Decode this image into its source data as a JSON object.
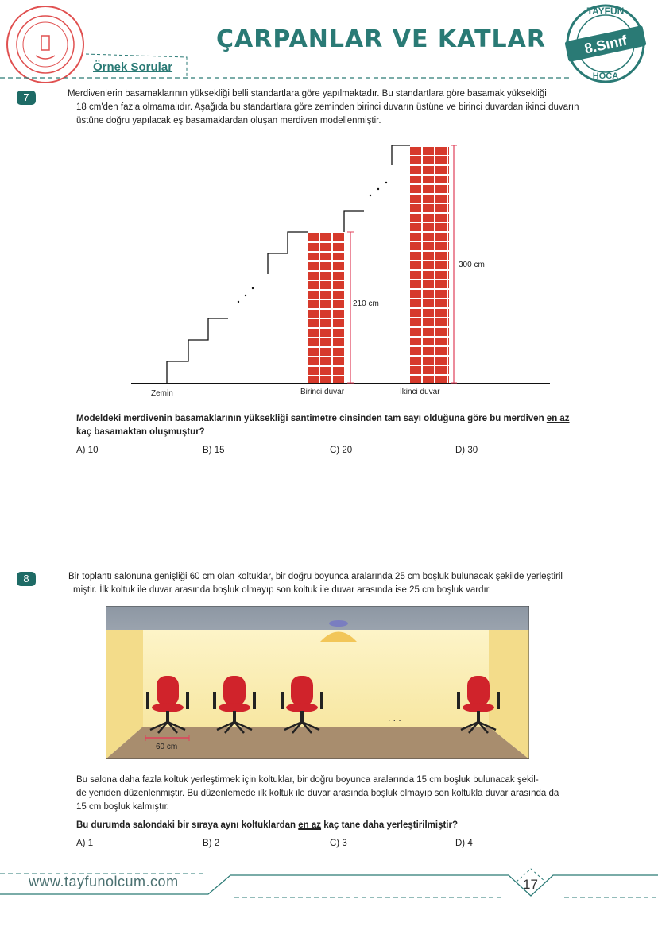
{
  "header": {
    "title": "ÇARPANLAR VE KATLAR",
    "section": "Örnek Sorular",
    "logo_left": "Türkiye Cumhuriyeti Milli Eğitim Bakanlığı",
    "logo_right": {
      "top": "TAYFUN",
      "middle": "8.Sınıf",
      "bottom": "HOCA"
    }
  },
  "q7": {
    "number": "7",
    "text": [
      "Merdivenlerin basamaklarının yüksekliği belli standartlara göre yapılmaktadır. Bu standartlara göre basamak yüksekliği",
      "18 cm'den fazla olmamalıdır. Aşağıda bu standartlara göre zeminden birinci duvarın üstüne ve  birinci duvardan ikinci duvarın",
      "üstüne doğru yapılacak eş basamaklardan oluşan merdiven modellenmiştir."
    ],
    "figure": {
      "ground": "Zemin",
      "wall1": "Birinci duvar",
      "wall2": "İkinci duvar",
      "h1": "210 cm",
      "h2": "300 cm",
      "brick_color": "#d63a2c",
      "measure_color": "#e0405a"
    },
    "question_pre": "Modeldeki merdivenin basamaklarının yüksekliği santimetre cinsinden tam sayı olduğuna göre bu merdiven ",
    "question_em": "en az",
    "question_post": "kaç basamaktan oluşmuştur?",
    "options": [
      "A) 10",
      "B) 15",
      "C) 20",
      "D) 30"
    ]
  },
  "q8": {
    "number": "8",
    "text": [
      "Bir toplantı salonuna genişliği 60 cm olan koltuklar, bir doğru boyunca aralarında 25 cm boşluk bulunacak şekilde yerleştiril",
      "miştir. İlk koltuk ile duvar arasında boşluk olmayıp son koltuk ile duvar arasında ise 25 cm boşluk vardır."
    ],
    "figure": {
      "chair_width": "60 cm",
      "dots": ". . .",
      "chair_color": "#d0232b"
    },
    "text2": [
      "Bu salona daha fazla koltuk yerleştirmek için koltuklar, bir doğru boyunca aralarında 15 cm boşluk bulunacak şekil-",
      "de yeniden düzenlenmiştir. Bu düzenlemede ilk koltuk ile duvar arasında boşluk olmayıp son koltukla duvar arasında da",
      "15 cm boşluk kalmıştır."
    ],
    "question_pre": "Bu durumda salondaki bir sıraya aynı koltuklardan ",
    "question_em": "en az",
    "question_post": " kaç tane daha yerleştirilmiştir?",
    "options": [
      "A) 1",
      "B) 2",
      "C) 3",
      "D) 4"
    ]
  },
  "footer": {
    "website": "www.tayfunolcum.com",
    "page": "17"
  },
  "colors": {
    "accent": "#1e6b66"
  }
}
